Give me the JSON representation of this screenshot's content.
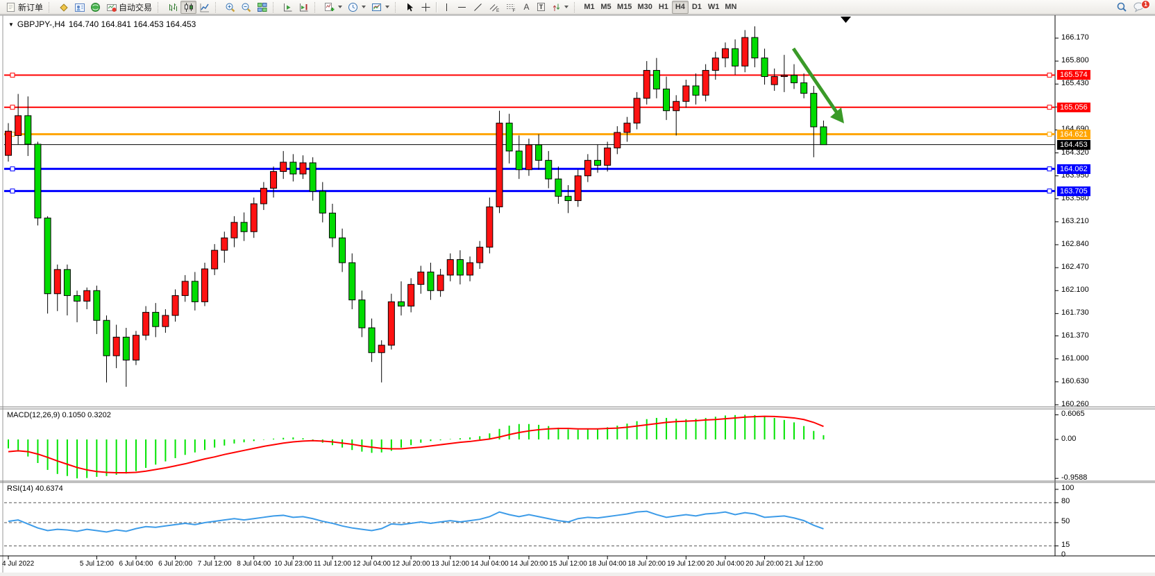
{
  "toolbar": {
    "new_order_label": "新订单",
    "autotrading_label": "自动交易",
    "timeframes": [
      "M1",
      "M5",
      "M15",
      "M30",
      "H1",
      "H4",
      "D1",
      "W1",
      "MN"
    ],
    "selected_timeframe": "H4",
    "notification_count": "1"
  },
  "chart": {
    "symbol_title": "GBPJPY-,H4",
    "ohlc_title": "164.740 164.841 164.453 164.453",
    "macd_label": "MACD(12,26,9) 0.1050 0.3202",
    "rsi_label": "RSI(14) 40.6374"
  },
  "chart_data": {
    "type": "candlestick",
    "symbol": "GBPJPY-",
    "timeframe": "H4",
    "title": "GBPJPY-,H4 164.740 164.841 164.453 164.453",
    "last_bar": {
      "open": 164.74,
      "high": 164.841,
      "low": 164.453,
      "close": 164.453
    },
    "colors": {
      "bull": "#fe1212",
      "bear": "#00dc00",
      "wick": "#000000",
      "macd_hist": "#00e400",
      "macd_signal": "#ff0000",
      "rsi_line": "#3c9be8",
      "arrow": "#3a9a28"
    },
    "ylim": [
      160.26,
      166.54
    ],
    "y_ticks": [
      166.17,
      165.8,
      165.43,
      165.06,
      164.69,
      164.32,
      163.95,
      163.58,
      163.21,
      162.84,
      162.47,
      162.1,
      161.73,
      161.37,
      161.0,
      160.63,
      160.26
    ],
    "hlines": [
      {
        "price": 165.574,
        "color": "#ff0000",
        "width": 2
      },
      {
        "price": 165.056,
        "color": "#ff0000",
        "width": 2
      },
      {
        "price": 164.621,
        "color": "#ffa500",
        "width": 3
      },
      {
        "price": 164.062,
        "color": "#0000ff",
        "width": 3
      },
      {
        "price": 163.705,
        "color": "#0000ff",
        "width": 3
      }
    ],
    "current_price": {
      "price": 164.453,
      "color": "#000000"
    },
    "candles": [
      [
        164.28,
        164.8,
        164.18,
        164.67
      ],
      [
        164.6,
        165.27,
        164.46,
        164.92
      ],
      [
        164.92,
        165.23,
        164.27,
        164.46
      ],
      [
        164.46,
        164.5,
        163.15,
        163.27
      ],
      [
        163.27,
        163.3,
        161.73,
        162.05
      ],
      [
        162.05,
        162.52,
        161.77,
        162.44
      ],
      [
        162.44,
        162.52,
        161.7,
        162.02
      ],
      [
        162.02,
        162.1,
        161.59,
        161.93
      ],
      [
        161.93,
        162.15,
        161.8,
        162.1
      ],
      [
        162.1,
        162.18,
        161.4,
        161.62
      ],
      [
        161.62,
        161.7,
        160.62,
        161.05
      ],
      [
        161.05,
        161.55,
        160.85,
        161.35
      ],
      [
        161.35,
        161.5,
        160.55,
        160.98
      ],
      [
        160.98,
        161.45,
        160.9,
        161.38
      ],
      [
        161.38,
        161.85,
        161.3,
        161.75
      ],
      [
        161.75,
        161.9,
        161.35,
        161.52
      ],
      [
        161.52,
        161.8,
        161.42,
        161.7
      ],
      [
        161.7,
        162.12,
        161.6,
        162.02
      ],
      [
        162.02,
        162.35,
        161.92,
        162.25
      ],
      [
        162.25,
        162.4,
        161.78,
        161.92
      ],
      [
        161.92,
        162.55,
        161.85,
        162.45
      ],
      [
        162.45,
        162.85,
        162.35,
        162.75
      ],
      [
        162.75,
        163.05,
        162.55,
        162.95
      ],
      [
        162.95,
        163.3,
        162.8,
        163.2
      ],
      [
        163.2,
        163.36,
        162.9,
        163.05
      ],
      [
        163.05,
        163.6,
        162.95,
        163.5
      ],
      [
        163.5,
        163.85,
        163.4,
        163.75
      ],
      [
        163.75,
        164.1,
        163.6,
        164.02
      ],
      [
        164.02,
        164.35,
        163.9,
        164.17
      ],
      [
        164.17,
        164.3,
        163.86,
        163.98
      ],
      [
        163.98,
        164.28,
        163.9,
        164.16
      ],
      [
        164.16,
        164.25,
        163.55,
        163.7
      ],
      [
        163.7,
        163.85,
        163.2,
        163.35
      ],
      [
        163.35,
        163.5,
        162.8,
        162.95
      ],
      [
        162.95,
        163.1,
        162.4,
        162.55
      ],
      [
        162.55,
        162.7,
        161.8,
        161.95
      ],
      [
        161.95,
        162.1,
        161.35,
        161.5
      ],
      [
        161.5,
        161.65,
        160.95,
        161.1
      ],
      [
        161.1,
        161.3,
        160.62,
        161.22
      ],
      [
        161.22,
        162.05,
        161.15,
        161.92
      ],
      [
        161.92,
        162.25,
        161.7,
        161.85
      ],
      [
        161.85,
        162.3,
        161.75,
        162.2
      ],
      [
        162.2,
        162.5,
        162.05,
        162.4
      ],
      [
        162.4,
        162.55,
        161.95,
        162.1
      ],
      [
        162.1,
        162.45,
        162.0,
        162.35
      ],
      [
        162.35,
        162.7,
        162.25,
        162.6
      ],
      [
        162.6,
        162.75,
        162.2,
        162.35
      ],
      [
        162.35,
        162.65,
        162.25,
        162.55
      ],
      [
        162.55,
        162.9,
        162.45,
        162.8
      ],
      [
        162.8,
        163.6,
        162.7,
        163.45
      ],
      [
        163.45,
        165.0,
        163.35,
        164.8
      ],
      [
        164.8,
        164.95,
        164.15,
        164.35
      ],
      [
        164.35,
        164.6,
        163.9,
        164.05
      ],
      [
        164.05,
        164.55,
        163.95,
        164.45
      ],
      [
        164.45,
        164.62,
        164.05,
        164.2
      ],
      [
        164.2,
        164.35,
        163.75,
        163.9
      ],
      [
        163.9,
        164.1,
        163.5,
        163.62
      ],
      [
        163.62,
        163.8,
        163.35,
        163.55
      ],
      [
        163.55,
        164.05,
        163.45,
        163.95
      ],
      [
        163.95,
        164.3,
        163.85,
        164.2
      ],
      [
        164.2,
        164.45,
        164.0,
        164.12
      ],
      [
        164.12,
        164.5,
        164.02,
        164.4
      ],
      [
        164.4,
        164.75,
        164.3,
        164.65
      ],
      [
        164.65,
        164.9,
        164.5,
        164.8
      ],
      [
        164.8,
        165.3,
        164.7,
        165.2
      ],
      [
        165.2,
        165.8,
        165.1,
        165.65
      ],
      [
        165.65,
        165.85,
        165.2,
        165.35
      ],
      [
        165.35,
        165.55,
        164.85,
        165.0
      ],
      [
        165.0,
        165.25,
        164.6,
        165.15
      ],
      [
        165.15,
        165.5,
        165.05,
        165.4
      ],
      [
        165.4,
        165.6,
        165.1,
        165.25
      ],
      [
        165.25,
        165.75,
        165.15,
        165.65
      ],
      [
        165.65,
        165.95,
        165.5,
        165.85
      ],
      [
        165.85,
        166.1,
        165.7,
        166.0
      ],
      [
        166.0,
        166.15,
        165.58,
        165.72
      ],
      [
        165.72,
        166.3,
        165.62,
        166.18
      ],
      [
        166.18,
        166.36,
        165.7,
        165.85
      ],
      [
        165.85,
        166.0,
        165.42,
        165.55
      ],
      [
        165.42,
        165.68,
        165.32,
        165.55
      ],
      [
        165.55,
        165.9,
        165.3,
        165.57
      ],
      [
        165.57,
        165.75,
        165.35,
        165.45
      ],
      [
        165.45,
        165.6,
        165.2,
        165.28
      ],
      [
        165.28,
        165.4,
        164.25,
        164.74
      ],
      [
        164.74,
        164.841,
        164.453,
        164.453
      ]
    ],
    "time_labels": [
      {
        "bar": 0,
        "text": "4 Jul 2022"
      },
      {
        "bar": 9,
        "text": "5 Jul 12:00"
      },
      {
        "bar": 13,
        "text": "6 Jul 04:00"
      },
      {
        "bar": 17,
        "text": "6 Jul 20:00"
      },
      {
        "bar": 21,
        "text": "7 Jul 12:00"
      },
      {
        "bar": 25,
        "text": "8 Jul 04:00"
      },
      {
        "bar": 29,
        "text": "10 Jul 23:00"
      },
      {
        "bar": 33,
        "text": "11 Jul 12:00"
      },
      {
        "bar": 37,
        "text": "12 Jul 04:00"
      },
      {
        "bar": 41,
        "text": "12 Jul 20:00"
      },
      {
        "bar": 45,
        "text": "13 Jul 12:00"
      },
      {
        "bar": 49,
        "text": "14 Jul 04:00"
      },
      {
        "bar": 53,
        "text": "14 Jul 20:00"
      },
      {
        "bar": 57,
        "text": "15 Jul 12:00"
      },
      {
        "bar": 61,
        "text": "18 Jul 04:00"
      },
      {
        "bar": 65,
        "text": "18 Jul 20:00"
      },
      {
        "bar": 69,
        "text": "19 Jul 12:00"
      },
      {
        "bar": 73,
        "text": "20 Jul 04:00"
      },
      {
        "bar": 77,
        "text": "20 Jul 20:00"
      },
      {
        "bar": 81,
        "text": "21 Jul 12:00"
      }
    ],
    "macd": {
      "name": "MACD",
      "params": "12,26,9",
      "current": 0.105,
      "signal_current": 0.3202,
      "axis": [
        0.6065,
        0.0,
        -0.9588
      ],
      "histogram": [
        -0.22,
        -0.3,
        -0.42,
        -0.58,
        -0.75,
        -0.85,
        -0.9,
        -0.9588,
        -0.95,
        -0.92,
        -0.9,
        -0.87,
        -0.84,
        -0.78,
        -0.7,
        -0.62,
        -0.54,
        -0.46,
        -0.38,
        -0.32,
        -0.26,
        -0.2,
        -0.15,
        -0.1,
        -0.07,
        -0.04,
        -0.01,
        0.02,
        0.04,
        0.05,
        0.03,
        -0.02,
        -0.08,
        -0.14,
        -0.2,
        -0.26,
        -0.3,
        -0.33,
        -0.32,
        -0.28,
        -0.2,
        -0.14,
        -0.08,
        -0.04,
        -0.02,
        0.01,
        0.03,
        0.05,
        0.08,
        0.15,
        0.26,
        0.34,
        0.38,
        0.38,
        0.36,
        0.33,
        0.29,
        0.25,
        0.24,
        0.25,
        0.27,
        0.3,
        0.34,
        0.39,
        0.45,
        0.5,
        0.53,
        0.53,
        0.51,
        0.5,
        0.51,
        0.53,
        0.56,
        0.59,
        0.6,
        0.6065,
        0.6,
        0.57,
        0.53,
        0.48,
        0.42,
        0.33,
        0.21,
        0.105
      ],
      "signal": [
        -0.3,
        -0.28,
        -0.3,
        -0.36,
        -0.44,
        -0.53,
        -0.61,
        -0.69,
        -0.75,
        -0.79,
        -0.81,
        -0.82,
        -0.82,
        -0.81,
        -0.78,
        -0.74,
        -0.7,
        -0.65,
        -0.6,
        -0.54,
        -0.48,
        -0.43,
        -0.37,
        -0.32,
        -0.27,
        -0.22,
        -0.17,
        -0.13,
        -0.09,
        -0.06,
        -0.04,
        -0.03,
        -0.04,
        -0.06,
        -0.09,
        -0.12,
        -0.16,
        -0.19,
        -0.22,
        -0.23,
        -0.23,
        -0.21,
        -0.19,
        -0.16,
        -0.13,
        -0.1,
        -0.07,
        -0.05,
        -0.02,
        0.01,
        0.06,
        0.12,
        0.17,
        0.21,
        0.24,
        0.26,
        0.27,
        0.27,
        0.26,
        0.26,
        0.26,
        0.27,
        0.28,
        0.3,
        0.33,
        0.36,
        0.39,
        0.42,
        0.44,
        0.45,
        0.46,
        0.48,
        0.49,
        0.51,
        0.53,
        0.55,
        0.56,
        0.57,
        0.565,
        0.55,
        0.53,
        0.49,
        0.42,
        0.3202
      ]
    },
    "rsi": {
      "name": "RSI",
      "period": 14,
      "current": 40.6374,
      "axis": [
        100,
        80,
        50,
        15,
        0
      ],
      "levels": [
        80,
        50,
        15
      ],
      "values": [
        52,
        54,
        48,
        42,
        38,
        40,
        39,
        37,
        40,
        38,
        36,
        39,
        37,
        41,
        44,
        43,
        45,
        47,
        49,
        47,
        50,
        52,
        54,
        56,
        54,
        56,
        58,
        60,
        61,
        58,
        59,
        56,
        52,
        49,
        45,
        42,
        40,
        38,
        41,
        48,
        47,
        49,
        51,
        49,
        51,
        53,
        51,
        53,
        55,
        59,
        66,
        62,
        59,
        62,
        59,
        56,
        53,
        51,
        56,
        58,
        57,
        59,
        61,
        63,
        66,
        67,
        62,
        58,
        60,
        62,
        60,
        63,
        64,
        66,
        62,
        65,
        63,
        58,
        59,
        60,
        57,
        53,
        46,
        40.6374
      ]
    },
    "annotation_arrow": {
      "color": "#3a9a28",
      "meaning": "projected down move",
      "from_price": 165.75,
      "to_price": 164.62
    }
  }
}
